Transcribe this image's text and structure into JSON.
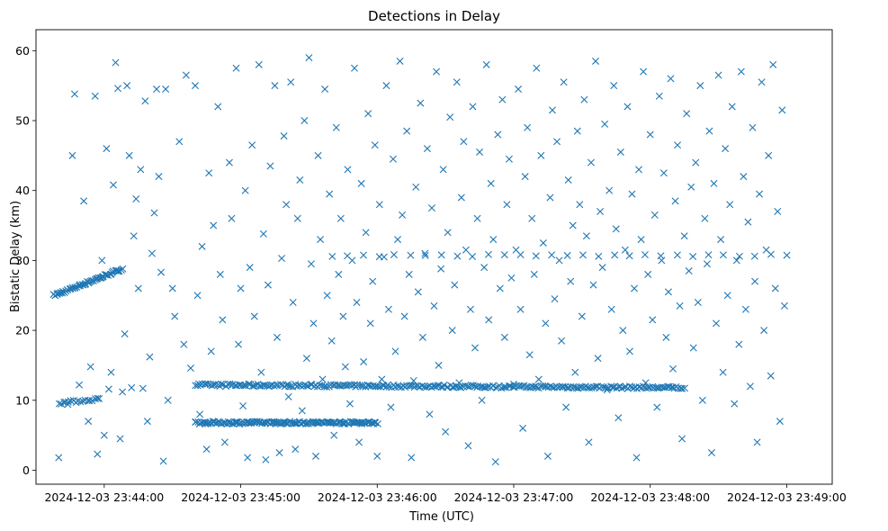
{
  "chart_data": {
    "type": "scatter",
    "title": "Detections in Delay",
    "xlabel": "Time (UTC)",
    "ylabel": "Bistatic Delay (km)",
    "marker": "x",
    "color": "#1f77b4",
    "x_unit": "seconds after 2024-12-03 23:44:00",
    "xlim": [
      -30,
      320
    ],
    "ylim": [
      -2,
      63
    ],
    "x_ticks": [
      {
        "value": 0,
        "label": "2024-12-03 23:44:00"
      },
      {
        "value": 60,
        "label": "2024-12-03 23:45:00"
      },
      {
        "value": 120,
        "label": "2024-12-03 23:46:00"
      },
      {
        "value": 180,
        "label": "2024-12-03 23:47:00"
      },
      {
        "value": 240,
        "label": "2024-12-03 23:48:00"
      },
      {
        "value": 300,
        "label": "2024-12-03 23:49:00"
      }
    ],
    "y_ticks": [
      0,
      10,
      20,
      30,
      40,
      50,
      60
    ],
    "tracks": [
      {
        "name": "ramp",
        "x_start": -22,
        "x_end": 8,
        "y_start": 25,
        "y_end": 28.8,
        "count": 55
      },
      {
        "name": "band-12",
        "x_start": 40,
        "x_end": 255,
        "y_start": 12.2,
        "y_end": 11.8,
        "count": 260
      },
      {
        "name": "band-7",
        "x_start": 40,
        "x_end": 120,
        "y_start": 6.8,
        "y_end": 6.8,
        "count": 150
      },
      {
        "name": "band-10",
        "x_start": -20,
        "x_end": -2,
        "y_start": 9.6,
        "y_end": 10.2,
        "count": 18
      },
      {
        "name": "band-30",
        "x_start": 100,
        "x_end": 300,
        "y_start": 30.7,
        "y_end": 30.7,
        "count": 30
      }
    ],
    "background_points": [
      [
        -20,
        1.8
      ],
      [
        -16,
        9.4
      ],
      [
        -14,
        45
      ],
      [
        -13,
        53.8
      ],
      [
        -11,
        12.2
      ],
      [
        -9,
        38.5
      ],
      [
        -7,
        7
      ],
      [
        -6,
        14.8
      ],
      [
        -4,
        53.5
      ],
      [
        -3,
        2.3
      ],
      [
        -1,
        30
      ],
      [
        0,
        5
      ],
      [
        1,
        46
      ],
      [
        2,
        11.6
      ],
      [
        3,
        14
      ],
      [
        4,
        40.8
      ],
      [
        5,
        58.3
      ],
      [
        6,
        54.6
      ],
      [
        7,
        4.5
      ],
      [
        8,
        11.2
      ],
      [
        9,
        19.5
      ],
      [
        10,
        55
      ],
      [
        11,
        45
      ],
      [
        12,
        11.8
      ],
      [
        13,
        33.5
      ],
      [
        14,
        38.8
      ],
      [
        15,
        26
      ],
      [
        16,
        43
      ],
      [
        17,
        11.7
      ],
      [
        18,
        52.8
      ],
      [
        19,
        7
      ],
      [
        20,
        16.2
      ],
      [
        21,
        31
      ],
      [
        22,
        36.8
      ],
      [
        23,
        54.5
      ],
      [
        24,
        42
      ],
      [
        25,
        28.3
      ],
      [
        26,
        1.3
      ],
      [
        27,
        54.5
      ],
      [
        28,
        10
      ],
      [
        30,
        26
      ],
      [
        31,
        22
      ],
      [
        33,
        47
      ],
      [
        35,
        18
      ],
      [
        36,
        56.5
      ],
      [
        38,
        14.6
      ],
      [
        40,
        55
      ],
      [
        41,
        25
      ],
      [
        42,
        8
      ],
      [
        43,
        32
      ],
      [
        45,
        3
      ],
      [
        46,
        42.5
      ],
      [
        47,
        17
      ],
      [
        48,
        35
      ],
      [
        50,
        52
      ],
      [
        51,
        28
      ],
      [
        52,
        21.5
      ],
      [
        53,
        4
      ],
      [
        55,
        44
      ],
      [
        56,
        36
      ],
      [
        58,
        57.5
      ],
      [
        59,
        18
      ],
      [
        60,
        26
      ],
      [
        61,
        9.2
      ],
      [
        62,
        40
      ],
      [
        63,
        1.8
      ],
      [
        64,
        29
      ],
      [
        65,
        46.5
      ],
      [
        66,
        22
      ],
      [
        68,
        58
      ],
      [
        69,
        14
      ],
      [
        70,
        33.8
      ],
      [
        71,
        1.5
      ],
      [
        72,
        26.5
      ],
      [
        73,
        43.5
      ],
      [
        75,
        55
      ],
      [
        76,
        19
      ],
      [
        77,
        2.5
      ],
      [
        78,
        30.3
      ],
      [
        79,
        47.8
      ],
      [
        80,
        38
      ],
      [
        81,
        10.5
      ],
      [
        82,
        55.5
      ],
      [
        83,
        24
      ],
      [
        84,
        3
      ],
      [
        85,
        36
      ],
      [
        86,
        41.5
      ],
      [
        87,
        8.5
      ],
      [
        88,
        50
      ],
      [
        89,
        16
      ],
      [
        90,
        59
      ],
      [
        91,
        29.5
      ],
      [
        92,
        21
      ],
      [
        93,
        2
      ],
      [
        94,
        45
      ],
      [
        95,
        33
      ],
      [
        96,
        13
      ],
      [
        97,
        54.5
      ],
      [
        98,
        25
      ],
      [
        99,
        39.5
      ],
      [
        100,
        18.5
      ],
      [
        101,
        5
      ],
      [
        102,
        49
      ],
      [
        103,
        28
      ],
      [
        104,
        36
      ],
      [
        105,
        22
      ],
      [
        106,
        14.8
      ],
      [
        107,
        43
      ],
      [
        108,
        9.5
      ],
      [
        109,
        30
      ],
      [
        110,
        57.5
      ],
      [
        111,
        24
      ],
      [
        112,
        4
      ],
      [
        113,
        41
      ],
      [
        114,
        15.5
      ],
      [
        115,
        34
      ],
      [
        116,
        51
      ],
      [
        117,
        21
      ],
      [
        118,
        27
      ],
      [
        119,
        46.5
      ],
      [
        120,
        2
      ],
      [
        121,
        38
      ],
      [
        122,
        13
      ],
      [
        123,
        30.5
      ],
      [
        124,
        55
      ],
      [
        125,
        23
      ],
      [
        126,
        9
      ],
      [
        127,
        44.5
      ],
      [
        128,
        17
      ],
      [
        129,
        33
      ],
      [
        130,
        58.5
      ],
      [
        131,
        36.5
      ],
      [
        132,
        22
      ],
      [
        133,
        48.5
      ],
      [
        134,
        28
      ],
      [
        135,
        1.8
      ],
      [
        136,
        12.8
      ],
      [
        137,
        40.5
      ],
      [
        138,
        25.5
      ],
      [
        139,
        52.5
      ],
      [
        140,
        19
      ],
      [
        141,
        31
      ],
      [
        142,
        46
      ],
      [
        143,
        8
      ],
      [
        144,
        37.5
      ],
      [
        145,
        23.5
      ],
      [
        146,
        57
      ],
      [
        147,
        15
      ],
      [
        148,
        28.8
      ],
      [
        149,
        43
      ],
      [
        150,
        5.5
      ],
      [
        151,
        34
      ],
      [
        152,
        50.5
      ],
      [
        153,
        20
      ],
      [
        154,
        26.5
      ],
      [
        155,
        55.5
      ],
      [
        156,
        12.5
      ],
      [
        157,
        39
      ],
      [
        158,
        47
      ],
      [
        159,
        31.5
      ],
      [
        160,
        3.5
      ],
      [
        161,
        23
      ],
      [
        162,
        52
      ],
      [
        163,
        17.5
      ],
      [
        164,
        36
      ],
      [
        165,
        45.5
      ],
      [
        166,
        10
      ],
      [
        167,
        29
      ],
      [
        168,
        58
      ],
      [
        169,
        21.5
      ],
      [
        170,
        41
      ],
      [
        171,
        33
      ],
      [
        172,
        1.2
      ],
      [
        173,
        48
      ],
      [
        174,
        26
      ],
      [
        175,
        53
      ],
      [
        176,
        19
      ],
      [
        177,
        38
      ],
      [
        178,
        44.5
      ],
      [
        179,
        27.5
      ],
      [
        180,
        12.3
      ],
      [
        181,
        31.5
      ],
      [
        182,
        54.5
      ],
      [
        183,
        23
      ],
      [
        184,
        6
      ],
      [
        185,
        42
      ],
      [
        186,
        49
      ],
      [
        187,
        16.5
      ],
      [
        188,
        36
      ],
      [
        189,
        28
      ],
      [
        190,
        57.5
      ],
      [
        191,
        13
      ],
      [
        192,
        45
      ],
      [
        193,
        32.5
      ],
      [
        194,
        21
      ],
      [
        195,
        2
      ],
      [
        196,
        39
      ],
      [
        197,
        51.5
      ],
      [
        198,
        24.5
      ],
      [
        199,
        47
      ],
      [
        200,
        30
      ],
      [
        201,
        18.5
      ],
      [
        202,
        55.5
      ],
      [
        203,
        9
      ],
      [
        204,
        41.5
      ],
      [
        205,
        27
      ],
      [
        206,
        35
      ],
      [
        207,
        14
      ],
      [
        208,
        48.5
      ],
      [
        209,
        38
      ],
      [
        210,
        22
      ],
      [
        211,
        53
      ],
      [
        212,
        33.5
      ],
      [
        213,
        4
      ],
      [
        214,
        44
      ],
      [
        215,
        26.5
      ],
      [
        216,
        58.5
      ],
      [
        217,
        16
      ],
      [
        218,
        37
      ],
      [
        219,
        29
      ],
      [
        220,
        49.5
      ],
      [
        221,
        11.5
      ],
      [
        222,
        40
      ],
      [
        223,
        23
      ],
      [
        224,
        55
      ],
      [
        225,
        34.5
      ],
      [
        226,
        7.5
      ],
      [
        227,
        45.5
      ],
      [
        228,
        20
      ],
      [
        229,
        31.5
      ],
      [
        230,
        52
      ],
      [
        231,
        17
      ],
      [
        232,
        39.5
      ],
      [
        233,
        26
      ],
      [
        234,
        1.8
      ],
      [
        235,
        43
      ],
      [
        236,
        33
      ],
      [
        237,
        57
      ],
      [
        238,
        12.5
      ],
      [
        239,
        28
      ],
      [
        240,
        48
      ],
      [
        241,
        21.5
      ],
      [
        242,
        36.5
      ],
      [
        243,
        9
      ],
      [
        244,
        53.5
      ],
      [
        245,
        30
      ],
      [
        246,
        42.5
      ],
      [
        247,
        19
      ],
      [
        248,
        25.5
      ],
      [
        249,
        56
      ],
      [
        250,
        14.5
      ],
      [
        251,
        38.5
      ],
      [
        252,
        46.5
      ],
      [
        253,
        23.5
      ],
      [
        254,
        4.5
      ],
      [
        255,
        33.5
      ],
      [
        256,
        51
      ],
      [
        257,
        28.5
      ],
      [
        258,
        40.5
      ],
      [
        259,
        17.5
      ],
      [
        260,
        44
      ],
      [
        261,
        24
      ],
      [
        262,
        55
      ],
      [
        263,
        10
      ],
      [
        264,
        36
      ],
      [
        265,
        29.5
      ],
      [
        266,
        48.5
      ],
      [
        267,
        2.5
      ],
      [
        268,
        41
      ],
      [
        269,
        21
      ],
      [
        270,
        56.5
      ],
      [
        271,
        33
      ],
      [
        272,
        14
      ],
      [
        273,
        46
      ],
      [
        274,
        25
      ],
      [
        275,
        38
      ],
      [
        276,
        52
      ],
      [
        277,
        9.5
      ],
      [
        278,
        30
      ],
      [
        279,
        18
      ],
      [
        280,
        57
      ],
      [
        281,
        42
      ],
      [
        282,
        23
      ],
      [
        283,
        35.5
      ],
      [
        284,
        12
      ],
      [
        285,
        49
      ],
      [
        286,
        27
      ],
      [
        287,
        4
      ],
      [
        288,
        39.5
      ],
      [
        289,
        55.5
      ],
      [
        290,
        20
      ],
      [
        291,
        31.5
      ],
      [
        292,
        45
      ],
      [
        293,
        13.5
      ],
      [
        294,
        58
      ],
      [
        295,
        26
      ],
      [
        296,
        37
      ],
      [
        297,
        7
      ],
      [
        298,
        51.5
      ],
      [
        299,
        23.5
      ]
    ]
  }
}
